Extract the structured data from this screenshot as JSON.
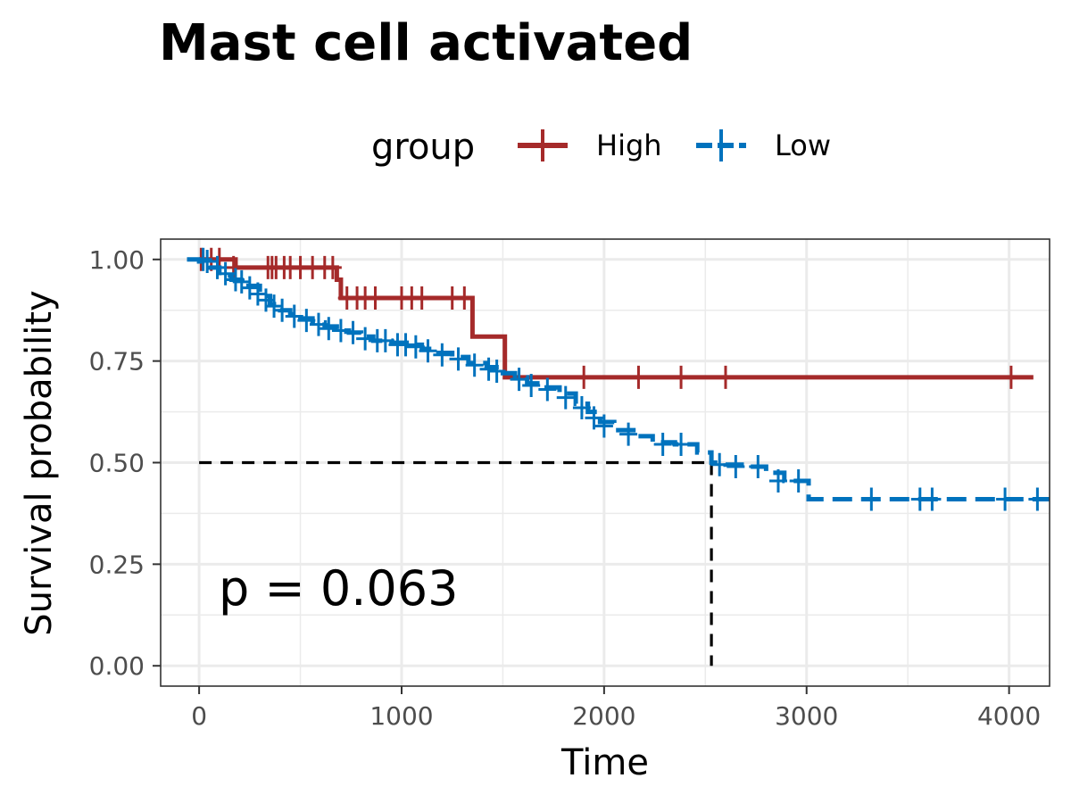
{
  "chart_data": {
    "type": "line",
    "subtype": "kaplan-meier",
    "title": "Mast cell activated",
    "xlabel": "Time",
    "ylabel": "Survival probability",
    "xlim": [
      -190,
      4200
    ],
    "ylim": [
      -0.05,
      1.05
    ],
    "x_ticks": [
      0,
      1000,
      2000,
      3000,
      4000
    ],
    "x_tick_labels": [
      "0",
      "1000",
      "2000",
      "3000",
      "4000"
    ],
    "y_ticks": [
      0,
      0.25,
      0.5,
      0.75,
      1.0
    ],
    "y_tick_labels": [
      "0.00",
      "0.25",
      "0.50",
      "0.75",
      "1.00"
    ],
    "grid": true,
    "legend": {
      "title": "group",
      "position": "top",
      "entries": [
        "High",
        "Low"
      ]
    },
    "annotation": "p = 0.063",
    "median_line": {
      "y": 0.5,
      "x": 2530
    },
    "series": [
      {
        "name": "High",
        "color": "#A52A2A",
        "linestyle": "solid",
        "steps": [
          [
            0,
            1.0
          ],
          [
            180,
            0.98
          ],
          [
            680,
            0.95
          ],
          [
            700,
            0.905
          ],
          [
            1350,
            0.81
          ],
          [
            1510,
            0.71
          ],
          [
            4120,
            0.71
          ]
        ],
        "censor": [
          [
            10,
            1.0
          ],
          [
            60,
            1.0
          ],
          [
            100,
            1.0
          ],
          [
            170,
            0.98
          ],
          [
            340,
            0.98
          ],
          [
            360,
            0.98
          ],
          [
            380,
            0.98
          ],
          [
            420,
            0.98
          ],
          [
            450,
            0.98
          ],
          [
            500,
            0.98
          ],
          [
            560,
            0.98
          ],
          [
            620,
            0.98
          ],
          [
            660,
            0.98
          ],
          [
            730,
            0.905
          ],
          [
            780,
            0.905
          ],
          [
            820,
            0.905
          ],
          [
            870,
            0.905
          ],
          [
            1000,
            0.905
          ],
          [
            1050,
            0.905
          ],
          [
            1100,
            0.905
          ],
          [
            1250,
            0.905
          ],
          [
            1310,
            0.905
          ],
          [
            1900,
            0.71
          ],
          [
            2170,
            0.71
          ],
          [
            2380,
            0.71
          ],
          [
            2600,
            0.71
          ],
          [
            4010,
            0.71
          ]
        ]
      },
      {
        "name": "Low",
        "color": "#0072BD",
        "linestyle": "dashed",
        "steps": [
          [
            -60,
            1.0
          ],
          [
            0,
            0.995
          ],
          [
            50,
            0.98
          ],
          [
            100,
            0.96
          ],
          [
            160,
            0.95
          ],
          [
            230,
            0.935
          ],
          [
            300,
            0.91
          ],
          [
            350,
            0.89
          ],
          [
            400,
            0.875
          ],
          [
            450,
            0.865
          ],
          [
            500,
            0.855
          ],
          [
            560,
            0.845
          ],
          [
            620,
            0.835
          ],
          [
            680,
            0.825
          ],
          [
            740,
            0.82
          ],
          [
            800,
            0.81
          ],
          [
            860,
            0.8
          ],
          [
            950,
            0.795
          ],
          [
            1040,
            0.79
          ],
          [
            1100,
            0.78
          ],
          [
            1170,
            0.77
          ],
          [
            1250,
            0.76
          ],
          [
            1330,
            0.745
          ],
          [
            1420,
            0.735
          ],
          [
            1500,
            0.72
          ],
          [
            1560,
            0.71
          ],
          [
            1620,
            0.695
          ],
          [
            1700,
            0.685
          ],
          [
            1780,
            0.67
          ],
          [
            1860,
            0.645
          ],
          [
            1920,
            0.625
          ],
          [
            1980,
            0.6
          ],
          [
            2050,
            0.58
          ],
          [
            2160,
            0.565
          ],
          [
            2240,
            0.55
          ],
          [
            2350,
            0.545
          ],
          [
            2460,
            0.525
          ],
          [
            2530,
            0.5
          ],
          [
            2600,
            0.495
          ],
          [
            2700,
            0.49
          ],
          [
            2800,
            0.475
          ],
          [
            2890,
            0.455
          ],
          [
            3010,
            0.41
          ],
          [
            4200,
            0.41
          ]
        ],
        "censor": [
          [
            20,
            1.0
          ],
          [
            40,
            0.995
          ],
          [
            90,
            0.98
          ],
          [
            130,
            0.965
          ],
          [
            180,
            0.95
          ],
          [
            210,
            0.945
          ],
          [
            250,
            0.93
          ],
          [
            290,
            0.915
          ],
          [
            330,
            0.9
          ],
          [
            370,
            0.885
          ],
          [
            410,
            0.875
          ],
          [
            470,
            0.86
          ],
          [
            530,
            0.85
          ],
          [
            590,
            0.84
          ],
          [
            640,
            0.83
          ],
          [
            700,
            0.825
          ],
          [
            760,
            0.82
          ],
          [
            820,
            0.805
          ],
          [
            880,
            0.8
          ],
          [
            920,
            0.8
          ],
          [
            980,
            0.79
          ],
          [
            1020,
            0.79
          ],
          [
            1070,
            0.785
          ],
          [
            1130,
            0.775
          ],
          [
            1200,
            0.765
          ],
          [
            1280,
            0.755
          ],
          [
            1360,
            0.74
          ],
          [
            1430,
            0.73
          ],
          [
            1470,
            0.725
          ],
          [
            1580,
            0.705
          ],
          [
            1640,
            0.69
          ],
          [
            1720,
            0.68
          ],
          [
            1810,
            0.66
          ],
          [
            1890,
            0.635
          ],
          [
            1950,
            0.61
          ],
          [
            2000,
            0.59
          ],
          [
            2120,
            0.57
          ],
          [
            2290,
            0.545
          ],
          [
            2380,
            0.545
          ],
          [
            2570,
            0.495
          ],
          [
            2650,
            0.49
          ],
          [
            2760,
            0.49
          ],
          [
            2860,
            0.455
          ],
          [
            2960,
            0.455
          ],
          [
            3320,
            0.41
          ],
          [
            3560,
            0.41
          ],
          [
            3620,
            0.41
          ],
          [
            3980,
            0.41
          ],
          [
            4140,
            0.41
          ]
        ]
      }
    ]
  }
}
